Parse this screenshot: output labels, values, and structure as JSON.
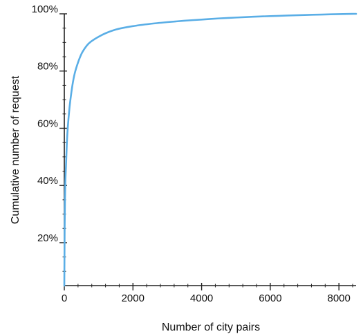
{
  "chart_data": {
    "type": "line",
    "title": "",
    "xlabel": "Number of city pairs",
    "ylabel": "Cumulative number of request",
    "xlim": [
      0,
      8500
    ],
    "ylim": [
      5,
      100
    ],
    "x_ticks": [
      0,
      2000,
      4000,
      6000,
      8000
    ],
    "x_tick_labels": [
      "0",
      "2000",
      "4000",
      "6000",
      "8000"
    ],
    "y_ticks": [
      20,
      40,
      60,
      80,
      100
    ],
    "y_tick_labels": [
      "20%",
      "40%",
      "60%",
      "80%",
      "100%"
    ],
    "grid": false,
    "legend": "none",
    "colors": {
      "series": "#5aaee6",
      "axis": "#222222",
      "text": "#111111"
    },
    "series": [
      {
        "x": [
          0,
          5,
          10,
          20,
          30,
          50,
          75,
          100,
          150,
          200,
          250,
          300,
          400,
          500,
          600,
          700,
          800,
          1000,
          1200,
          1500,
          2000,
          2500,
          3000,
          3500,
          4000,
          4500,
          5000,
          5500,
          6000,
          6500,
          7000,
          7500,
          8000,
          8500
        ],
        "y": [
          5,
          15,
          25,
          35,
          41,
          47,
          55,
          60,
          67,
          72,
          76,
          79,
          83,
          86,
          88,
          89.5,
          90.5,
          92,
          93.2,
          94.5,
          95.7,
          96.5,
          97.1,
          97.6,
          98,
          98.4,
          98.7,
          99,
          99.2,
          99.4,
          99.6,
          99.75,
          99.9,
          100
        ]
      }
    ]
  }
}
